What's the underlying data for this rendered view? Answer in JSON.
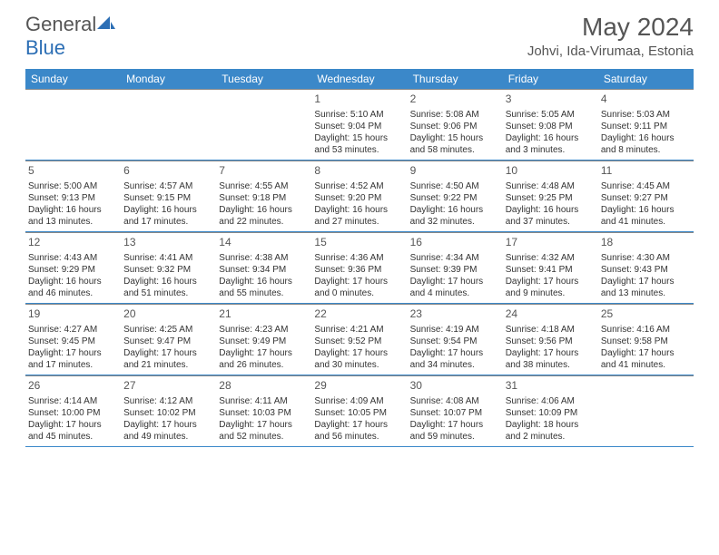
{
  "logo": {
    "text1": "General",
    "text2": "Blue"
  },
  "title": "May 2024",
  "location": "Johvi, Ida-Virumaa, Estonia",
  "colors": {
    "header_bg": "#3b88c9",
    "header_text": "#ffffff",
    "border": "#888888",
    "week_border": "#3b88c9",
    "text": "#333333",
    "title_text": "#555555"
  },
  "weekdays": [
    "Sunday",
    "Monday",
    "Tuesday",
    "Wednesday",
    "Thursday",
    "Friday",
    "Saturday"
  ],
  "weeks": [
    [
      null,
      null,
      null,
      {
        "n": "1",
        "sr": "5:10 AM",
        "ss": "9:04 PM",
        "d1": "Daylight: 15 hours",
        "d2": "and 53 minutes."
      },
      {
        "n": "2",
        "sr": "5:08 AM",
        "ss": "9:06 PM",
        "d1": "Daylight: 15 hours",
        "d2": "and 58 minutes."
      },
      {
        "n": "3",
        "sr": "5:05 AM",
        "ss": "9:08 PM",
        "d1": "Daylight: 16 hours",
        "d2": "and 3 minutes."
      },
      {
        "n": "4",
        "sr": "5:03 AM",
        "ss": "9:11 PM",
        "d1": "Daylight: 16 hours",
        "d2": "and 8 minutes."
      }
    ],
    [
      {
        "n": "5",
        "sr": "5:00 AM",
        "ss": "9:13 PM",
        "d1": "Daylight: 16 hours",
        "d2": "and 13 minutes."
      },
      {
        "n": "6",
        "sr": "4:57 AM",
        "ss": "9:15 PM",
        "d1": "Daylight: 16 hours",
        "d2": "and 17 minutes."
      },
      {
        "n": "7",
        "sr": "4:55 AM",
        "ss": "9:18 PM",
        "d1": "Daylight: 16 hours",
        "d2": "and 22 minutes."
      },
      {
        "n": "8",
        "sr": "4:52 AM",
        "ss": "9:20 PM",
        "d1": "Daylight: 16 hours",
        "d2": "and 27 minutes."
      },
      {
        "n": "9",
        "sr": "4:50 AM",
        "ss": "9:22 PM",
        "d1": "Daylight: 16 hours",
        "d2": "and 32 minutes."
      },
      {
        "n": "10",
        "sr": "4:48 AM",
        "ss": "9:25 PM",
        "d1": "Daylight: 16 hours",
        "d2": "and 37 minutes."
      },
      {
        "n": "11",
        "sr": "4:45 AM",
        "ss": "9:27 PM",
        "d1": "Daylight: 16 hours",
        "d2": "and 41 minutes."
      }
    ],
    [
      {
        "n": "12",
        "sr": "4:43 AM",
        "ss": "9:29 PM",
        "d1": "Daylight: 16 hours",
        "d2": "and 46 minutes."
      },
      {
        "n": "13",
        "sr": "4:41 AM",
        "ss": "9:32 PM",
        "d1": "Daylight: 16 hours",
        "d2": "and 51 minutes."
      },
      {
        "n": "14",
        "sr": "4:38 AM",
        "ss": "9:34 PM",
        "d1": "Daylight: 16 hours",
        "d2": "and 55 minutes."
      },
      {
        "n": "15",
        "sr": "4:36 AM",
        "ss": "9:36 PM",
        "d1": "Daylight: 17 hours",
        "d2": "and 0 minutes."
      },
      {
        "n": "16",
        "sr": "4:34 AM",
        "ss": "9:39 PM",
        "d1": "Daylight: 17 hours",
        "d2": "and 4 minutes."
      },
      {
        "n": "17",
        "sr": "4:32 AM",
        "ss": "9:41 PM",
        "d1": "Daylight: 17 hours",
        "d2": "and 9 minutes."
      },
      {
        "n": "18",
        "sr": "4:30 AM",
        "ss": "9:43 PM",
        "d1": "Daylight: 17 hours",
        "d2": "and 13 minutes."
      }
    ],
    [
      {
        "n": "19",
        "sr": "4:27 AM",
        "ss": "9:45 PM",
        "d1": "Daylight: 17 hours",
        "d2": "and 17 minutes."
      },
      {
        "n": "20",
        "sr": "4:25 AM",
        "ss": "9:47 PM",
        "d1": "Daylight: 17 hours",
        "d2": "and 21 minutes."
      },
      {
        "n": "21",
        "sr": "4:23 AM",
        "ss": "9:49 PM",
        "d1": "Daylight: 17 hours",
        "d2": "and 26 minutes."
      },
      {
        "n": "22",
        "sr": "4:21 AM",
        "ss": "9:52 PM",
        "d1": "Daylight: 17 hours",
        "d2": "and 30 minutes."
      },
      {
        "n": "23",
        "sr": "4:19 AM",
        "ss": "9:54 PM",
        "d1": "Daylight: 17 hours",
        "d2": "and 34 minutes."
      },
      {
        "n": "24",
        "sr": "4:18 AM",
        "ss": "9:56 PM",
        "d1": "Daylight: 17 hours",
        "d2": "and 38 minutes."
      },
      {
        "n": "25",
        "sr": "4:16 AM",
        "ss": "9:58 PM",
        "d1": "Daylight: 17 hours",
        "d2": "and 41 minutes."
      }
    ],
    [
      {
        "n": "26",
        "sr": "4:14 AM",
        "ss": "10:00 PM",
        "d1": "Daylight: 17 hours",
        "d2": "and 45 minutes."
      },
      {
        "n": "27",
        "sr": "4:12 AM",
        "ss": "10:02 PM",
        "d1": "Daylight: 17 hours",
        "d2": "and 49 minutes."
      },
      {
        "n": "28",
        "sr": "4:11 AM",
        "ss": "10:03 PM",
        "d1": "Daylight: 17 hours",
        "d2": "and 52 minutes."
      },
      {
        "n": "29",
        "sr": "4:09 AM",
        "ss": "10:05 PM",
        "d1": "Daylight: 17 hours",
        "d2": "and 56 minutes."
      },
      {
        "n": "30",
        "sr": "4:08 AM",
        "ss": "10:07 PM",
        "d1": "Daylight: 17 hours",
        "d2": "and 59 minutes."
      },
      {
        "n": "31",
        "sr": "4:06 AM",
        "ss": "10:09 PM",
        "d1": "Daylight: 18 hours",
        "d2": "and 2 minutes."
      },
      null
    ]
  ]
}
